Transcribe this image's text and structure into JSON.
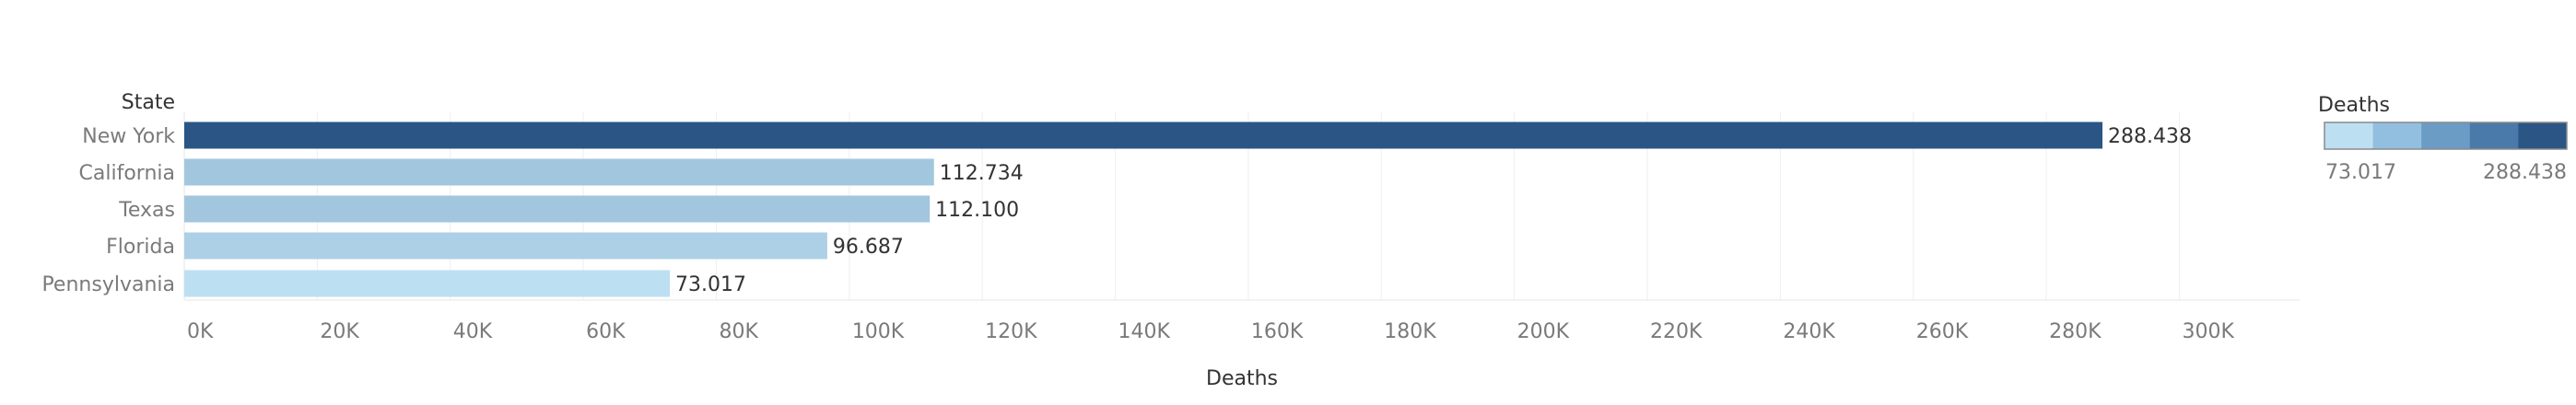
{
  "chart_data": {
    "type": "bar",
    "orientation": "horizontal",
    "row_header": "State",
    "categories": [
      "New York",
      "California",
      "Texas",
      "Florida",
      "Pennsylvania"
    ],
    "values": [
      288438,
      112734,
      112100,
      96687,
      73017
    ],
    "value_labels": [
      "288.438",
      "112.734",
      "112.100",
      "96.687",
      "73.017"
    ],
    "xlabel": "Deaths",
    "xlim": [
      0,
      316000
    ],
    "x_ticks": [
      0,
      20000,
      40000,
      60000,
      80000,
      100000,
      120000,
      140000,
      160000,
      180000,
      200000,
      220000,
      240000,
      260000,
      280000,
      300000
    ],
    "x_tick_labels": [
      "0K",
      "20K",
      "40K",
      "60K",
      "80K",
      "100K",
      "120K",
      "140K",
      "160K",
      "180K",
      "200K",
      "220K",
      "240K",
      "260K",
      "280K",
      "300K"
    ],
    "grid": true,
    "legend": {
      "title": "Deaths",
      "placement": "right",
      "min_label": "73.017",
      "max_label": "288.438",
      "min": 73017,
      "max": 288438,
      "steps": [
        "#bddff2",
        "#92bfdf",
        "#6a9cc5",
        "#4a7aaa",
        "#2a5585"
      ]
    }
  }
}
